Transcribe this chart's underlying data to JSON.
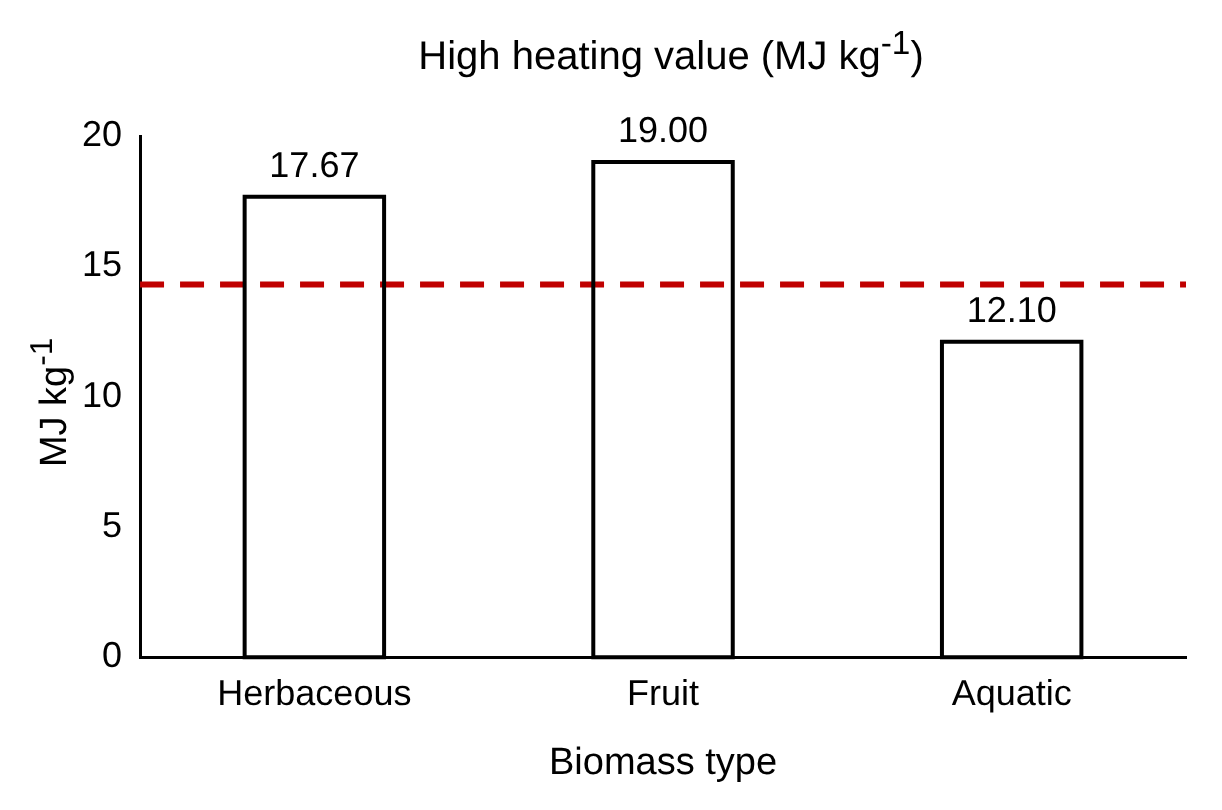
{
  "chart_data": {
    "type": "bar",
    "title": "High heating value (MJ kg$^{-1}$)",
    "xlabel": "Biomass type",
    "ylabel": "MJ kg$^{-1}$",
    "categories": [
      "Herbaceous",
      "Fruit",
      "Aquatic"
    ],
    "values": [
      17.67,
      19.0,
      12.1
    ],
    "value_labels": [
      "17.67",
      "19.00",
      "12.10"
    ],
    "color": "#ffffff",
    "ylim": [
      0,
      20
    ],
    "yticks": [
      0,
      5,
      10,
      15,
      20
    ],
    "grid": false,
    "legend": false,
    "ref_lines": [
      {
        "axis": "y",
        "value": 14.3,
        "color": "#c00000",
        "line_style": "dashed"
      }
    ]
  }
}
